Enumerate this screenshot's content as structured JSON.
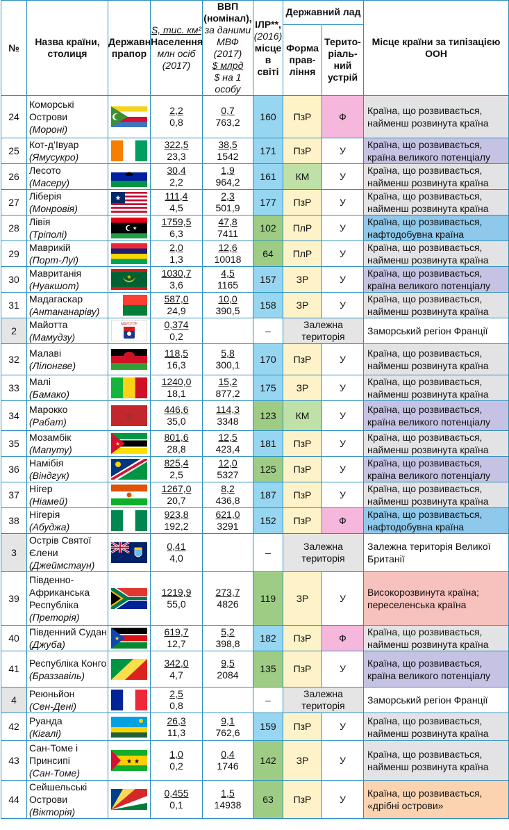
{
  "headers": {
    "num": "№",
    "name": "Назва країни, столиця",
    "flag": "Державний прапор",
    "area_l1": "S, тис. км²",
    "area_l2": "Населення,",
    "area_l3": "млн осіб (2017)",
    "gdp_l1": "ВВП (номінал),",
    "gdp_l2": "за даними МВФ (2017)",
    "gdp_l3": "$ млрд",
    "gdp_l4": "$ на 1 особу",
    "hdi_l1": "ІЛР**,",
    "hdi_l2": "(2016)",
    "hdi_l3": "місце в світі",
    "state": "Державний лад",
    "gov": "Форма прав-ління",
    "ter": "Терито-ріаль-ний устрій",
    "place": "Місце країни за типізацією ООН"
  },
  "colors": {
    "border": "#2a8fbd",
    "hdi_blue": "#97d6f0",
    "hdi_green": "#9fcc85",
    "gov_PzR": "#fdf2c8",
    "gov_ZR": "#fdf2c8",
    "gov_PlR": "#fdf2c8",
    "gov_KM": "#bfe0a6",
    "ter_U": "#ffffff",
    "ter_F": "#f5b8dc",
    "pl_least": "#e3e3e5",
    "pl_potential": "#c6c2e3",
    "pl_oil": "#8ec8eb",
    "pl_dev": "#f7c1bd",
    "pl_island": "#fbd3b0",
    "pl_white": "#ffffff",
    "dep_bg": "#e5e5e5"
  },
  "rows": [
    {
      "num": "24",
      "name": "Коморські Острови",
      "capital": "(Мороні)",
      "flag": "comoros",
      "area": "2,2",
      "pop": "0,8",
      "gdp": "0,7",
      "gdp_pc": "763,2",
      "hdi": "160",
      "hdi_color": "blue",
      "gov": "ПзР",
      "ter": "Ф",
      "place": "Країна, що розвивається, найменш розвинута країна",
      "place_type": "least"
    },
    {
      "num": "25",
      "name": "Кот-д’Івуар",
      "capital": "(Ямусукро)",
      "flag": "ivory",
      "area": "322,5",
      "pop": "23,3",
      "gdp": "38,5",
      "gdp_pc": "1542",
      "hdi": "171",
      "hdi_color": "blue",
      "gov": "ПзР",
      "ter": "У",
      "place": "Країна, що розвивається, країна великого потенціалу",
      "place_type": "potential"
    },
    {
      "num": "26",
      "name": "Лесото",
      "capital": "(Масеру)",
      "flag": "lesotho",
      "area": "30,4",
      "pop": "2,2",
      "gdp": "1,9",
      "gdp_pc": "964,2",
      "hdi": "161",
      "hdi_color": "blue",
      "gov": "КМ",
      "ter": "У",
      "place": "Країна, що розвивається, найменш розвинута країна",
      "place_type": "least"
    },
    {
      "num": "27",
      "name": "Ліберія",
      "capital": "(Монровія)",
      "flag": "liberia",
      "area": "111,4",
      "pop": "4,5",
      "gdp": "2,3",
      "gdp_pc": "501,9",
      "hdi": "177",
      "hdi_color": "blue",
      "gov": "ПзР",
      "ter": "У",
      "place": "Країна, що розвивається, найменш розвинута країна",
      "place_type": "least"
    },
    {
      "num": "28",
      "name": "Лівія",
      "capital": "(Тріполі)",
      "flag": "libya",
      "area": "1759,5",
      "pop": "6,3",
      "gdp": "47,8",
      "gdp_pc": "7411",
      "hdi": "102",
      "hdi_color": "green",
      "gov": "ПлР",
      "ter": "У",
      "place": "Країна, що розвивається, нафтодобувна країна",
      "place_type": "oil"
    },
    {
      "num": "29",
      "name": "Маврикій",
      "capital": "(Порт-Луї)",
      "flag": "mauritius",
      "area": "2,0",
      "pop": "1,3",
      "gdp": "12,6",
      "gdp_pc": "10018",
      "hdi": "64",
      "hdi_color": "green",
      "gov": "ПлР",
      "ter": "У",
      "place": "Країна, що розвивається, найменш розвинута країна",
      "place_type": "least"
    },
    {
      "num": "30",
      "name": "Мавританія",
      "capital": "(Нуакшот)",
      "flag": "mauritania",
      "area": "1030,7",
      "pop": "3,6",
      "gdp": "4,5",
      "gdp_pc": "1165",
      "hdi": "157",
      "hdi_color": "blue",
      "gov": "ЗР",
      "ter": "У",
      "place": "Країна, що розвивається, країна великого потенціалу",
      "place_type": "potential"
    },
    {
      "num": "31",
      "name": "Мадагаскар",
      "capital": "(Антананаріву)",
      "flag": "madagascar",
      "area": "587,0",
      "pop": "24,9",
      "gdp": "10,0",
      "gdp_pc": "390,5",
      "hdi": "158",
      "hdi_color": "blue",
      "gov": "ЗР",
      "ter": "У",
      "place": "Країна, що розвивається, найменш розвинута країна",
      "place_type": "least"
    },
    {
      "num": "2",
      "dependent": true,
      "name": "Майотта",
      "capital": "(Мамудзу)",
      "flag": "mayotte",
      "flag_text": "MAYOTTE",
      "area": "0,374",
      "pop": "0,2",
      "gdp": "",
      "gdp_pc": "",
      "hdi": "–",
      "dep_label": "Залежна територія",
      "place": "Заморський регіон Франції",
      "place_type": "white"
    },
    {
      "num": "32",
      "name": "Малаві",
      "capital": "(Лілонгве)",
      "flag": "malawi",
      "area": "118,5",
      "pop": "16,3",
      "gdp": "5,8",
      "gdp_pc": "300,1",
      "hdi": "170",
      "hdi_color": "blue",
      "gov": "ПзР",
      "ter": "У",
      "place": "Країна, що розвивається, найменш розвинута країна",
      "place_type": "least"
    },
    {
      "num": "33",
      "name": "Малі",
      "capital": "(Бамако)",
      "flag": "mali",
      "area": "1240,0",
      "pop": "18,1",
      "gdp": "15,2",
      "gdp_pc": "877,2",
      "hdi": "175",
      "hdi_color": "blue",
      "gov": "ЗР",
      "ter": "У",
      "place": "Країна, що розвивається, найменш розвинута країна",
      "place_type": "least"
    },
    {
      "num": "34",
      "name": "Марокко",
      "capital": "(Рабат)",
      "flag": "morocco",
      "area": "446,6",
      "pop": "35,0",
      "gdp": "114,3",
      "gdp_pc": "3348",
      "hdi": "123",
      "hdi_color": "green",
      "gov": "КМ",
      "ter": "У",
      "place": "Країна, що розвивається, країна великого потенціалу",
      "place_type": "potential"
    },
    {
      "num": "35",
      "name": "Мозамбік",
      "capital": "(Мапуту)",
      "flag": "mozambique",
      "area": "801,6",
      "pop": "28,8",
      "gdp": "12,5",
      "gdp_pc": "423,4",
      "hdi": "181",
      "hdi_color": "blue",
      "gov": "ПзР",
      "ter": "У",
      "place": "Країна, що розвивається, найменш розвинута країна",
      "place_type": "least"
    },
    {
      "num": "36",
      "name": "Намібія",
      "capital": "(Віндгук)",
      "flag": "namibia",
      "area": "825,4",
      "pop": "2,5",
      "gdp": "12,0",
      "gdp_pc": "5327",
      "hdi": "125",
      "hdi_color": "green",
      "gov": "ПзР",
      "ter": "У",
      "place": "Країна, що розвивається, країна великого потенціалу",
      "place_type": "potential"
    },
    {
      "num": "37",
      "name": "Нігер",
      "capital": "(Ніамей)",
      "flag": "niger",
      "area": "1267,0",
      "pop": "20,7",
      "gdp": "8,2",
      "gdp_pc": "436,8",
      "hdi": "187",
      "hdi_color": "blue",
      "gov": "ПзР",
      "ter": "У",
      "place": "Країна, що розвивається, найменш розвинута країна",
      "place_type": "least"
    },
    {
      "num": "38",
      "name": "Нігерія",
      "capital": "(Абуджа)",
      "flag": "nigeria",
      "area": "923,8",
      "pop": "192,2",
      "gdp": "621,0",
      "gdp_pc": "3291",
      "hdi": "152",
      "hdi_color": "blue",
      "gov": "ПзР",
      "ter": "Ф",
      "place": "Країна, що розвивається, нафтодобувна країна",
      "place_type": "oil"
    },
    {
      "num": "3",
      "dependent": true,
      "name": "Острів Святої Єлени",
      "capital": "(Джеймстаун)",
      "flag": "sthelena",
      "area": "0,41",
      "pop": "4,0",
      "gdp": "",
      "gdp_pc": "",
      "hdi": "–",
      "dep_label": "Залежна територія",
      "place": "Залежна територія Великої Британії",
      "place_type": "white"
    },
    {
      "num": "39",
      "name": "Південно-Африканська Республіка",
      "capital": "(Преторія)",
      "flag": "southafrica",
      "area": "1219,9",
      "pop": "55,0",
      "gdp": "273,7",
      "gdp_pc": "4826",
      "hdi": "119",
      "hdi_color": "green",
      "gov": "ЗР",
      "ter": "У",
      "place": "Високорозвинута країна; переселенська країна",
      "place_type": "dev"
    },
    {
      "num": "40",
      "name": "Південний Судан",
      "capital": "(Джуба)",
      "flag": "southsudan",
      "area": "619,7",
      "pop": "12,7",
      "gdp": "5,2",
      "gdp_pc": "398,8",
      "hdi": "182",
      "hdi_color": "blue",
      "gov": "ПзР",
      "ter": "Ф",
      "place": "Країна, що розвивається, найменш розвинута країна",
      "place_type": "least"
    },
    {
      "num": "41",
      "name": "Республіка Конго",
      "capital": "(Браззавіль)",
      "flag": "congo",
      "area": "342,0",
      "pop": "4,7",
      "gdp": "9,5",
      "gdp_pc": "2084",
      "hdi": "135",
      "hdi_color": "green",
      "gov": "ПзР",
      "ter": "У",
      "place": "Країна, що розвивається, країна великого потенціалу",
      "place_type": "potential"
    },
    {
      "num": "4",
      "dependent": true,
      "name": "Реюньйон",
      "capital": "(Сен-Дені)",
      "flag": "france",
      "area": "2,5",
      "pop": "0,8",
      "gdp": "",
      "gdp_pc": "",
      "hdi": "–",
      "dep_label": "Залежна територія",
      "place": "Заморський регіон Франції",
      "place_type": "white"
    },
    {
      "num": "42",
      "name": "Руанда",
      "capital": "(Кігалі)",
      "flag": "rwanda",
      "area": "26,3",
      "pop": "11,3",
      "gdp": "9,1",
      "gdp_pc": "762,6",
      "hdi": "159",
      "hdi_color": "blue",
      "gov": "ПзР",
      "ter": "У",
      "place": "Країна, що розвивається, найменш розвинута країна",
      "place_type": "least"
    },
    {
      "num": "43",
      "name": "Сан-Томе і Принсипі",
      "capital": "(Сан-Томе)",
      "flag": "saotome",
      "area": "1,0",
      "pop": "0,2",
      "gdp": "0,4",
      "gdp_pc": "1746",
      "hdi": "142",
      "hdi_color": "green",
      "gov": "ЗР",
      "ter": "У",
      "place": "Країна, що розвивається, найменш розвинута країна",
      "place_type": "least"
    },
    {
      "num": "44",
      "name": "Сейшельські Острови",
      "capital": "(Вікторія)",
      "flag": "seychelles",
      "area": "0,455",
      "pop": "0,1",
      "gdp": "1,5",
      "gdp_pc": "14938",
      "hdi": "63",
      "hdi_color": "green",
      "gov": "ПзР",
      "ter": "У",
      "place": "Країна, що розвивається, «дрібні острови»",
      "place_type": "island"
    }
  ]
}
